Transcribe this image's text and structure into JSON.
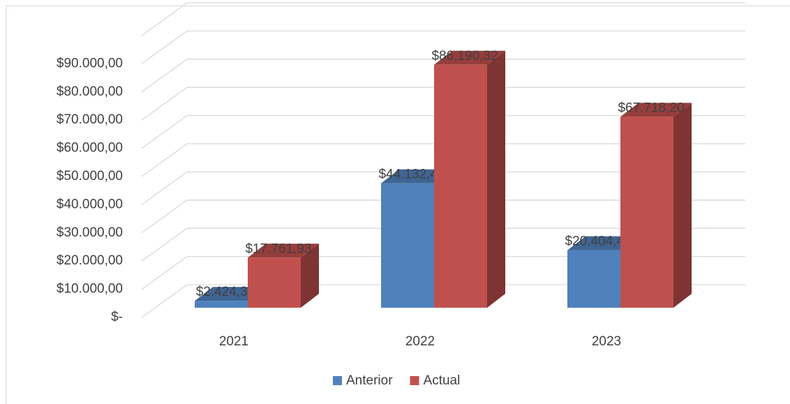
{
  "chart_data": {
    "type": "bar3d",
    "categories": [
      "2021",
      "2022",
      "2023"
    ],
    "series": [
      {
        "name": "Anterior",
        "color": "#4f81bd",
        "values": [
          2424.36,
          44132.45,
          20404.49
        ],
        "value_labels": [
          "$2.424,36",
          "$44.132,45",
          "$20.404,49"
        ]
      },
      {
        "name": "Actual",
        "color": "#c0504d",
        "values": [
          17761.93,
          86190.32,
          67718.2
        ],
        "value_labels": [
          "$17.761,93",
          "$86.190,32",
          "$67.718,20"
        ]
      }
    ],
    "ylim": [
      0,
      100000
    ],
    "yticks": [
      {
        "value": 0,
        "label": "$-"
      },
      {
        "value": 10000,
        "label": "$10.000,00"
      },
      {
        "value": 20000,
        "label": "$20.000,00"
      },
      {
        "value": 30000,
        "label": "$30.000,00"
      },
      {
        "value": 40000,
        "label": "$40.000,00"
      },
      {
        "value": 50000,
        "label": "$50.000,00"
      },
      {
        "value": 60000,
        "label": "$60.000,00"
      },
      {
        "value": 70000,
        "label": "$70.000,00"
      },
      {
        "value": 80000,
        "label": "$80.000,00"
      },
      {
        "value": 90000,
        "label": "$90.000,00"
      }
    ],
    "grid": true,
    "legend": "bottom"
  }
}
